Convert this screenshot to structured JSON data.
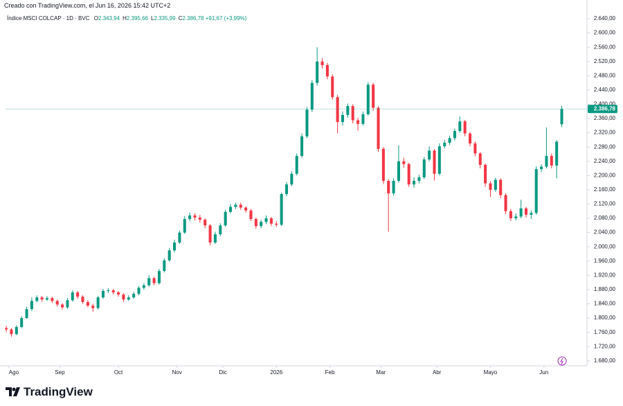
{
  "header": "Creado con TradingView.com, el Jun 16, 2026 15:42 UTC+2",
  "legend": {
    "name": "Índice MSCI COLCAP · 1D · BVC",
    "items": [
      [
        "O",
        "2.343,94"
      ],
      [
        "H",
        "2.395,66"
      ],
      [
        "L",
        "2.335,99"
      ],
      [
        "C",
        "2.386,78"
      ]
    ],
    "change": "+91,67 (+3,99%)"
  },
  "logo": "TradingView",
  "chart_data": {
    "type": "candlestick",
    "up_color": "#089981",
    "down_color": "#f23645",
    "grid": false,
    "ylim": [
      1666,
      2677
    ],
    "yticks": [
      {
        "value": 1680,
        "label": "1.680,00"
      },
      {
        "value": 1720,
        "label": "1.720,00"
      },
      {
        "value": 1760,
        "label": "1.760,00"
      },
      {
        "value": 1800,
        "label": "1.800,00"
      },
      {
        "value": 1840,
        "label": "1.840,00"
      },
      {
        "value": 1880,
        "label": "1.880,00"
      },
      {
        "value": 1920,
        "label": "1.920,00"
      },
      {
        "value": 1960,
        "label": "1.960,00"
      },
      {
        "value": 2000,
        "label": "2.000,00"
      },
      {
        "value": 2040,
        "label": "2.040,00"
      },
      {
        "value": 2080,
        "label": "2.080,00"
      },
      {
        "value": 2120,
        "label": "2.120,00"
      },
      {
        "value": 2160,
        "label": "2.160,00"
      },
      {
        "value": 2200,
        "label": "2.200,00"
      },
      {
        "value": 2240,
        "label": "2.240,00"
      },
      {
        "value": 2280,
        "label": "2.280,00"
      },
      {
        "value": 2320,
        "label": "2.320,00"
      },
      {
        "value": 2360,
        "label": "2.360,00"
      },
      {
        "value": 2400,
        "label": "2.400,00"
      },
      {
        "value": 2440,
        "label": "2.440,00"
      },
      {
        "value": 2480,
        "label": "2.480,00"
      },
      {
        "value": 2520,
        "label": "2.520,00"
      },
      {
        "value": 2560,
        "label": "2.560,00"
      },
      {
        "value": 2600,
        "label": "2.600,00"
      },
      {
        "value": 2640,
        "label": "2.640,00"
      }
    ],
    "xlim": [
      -0.15,
      109.2
    ],
    "xticks": [
      {
        "value": 0.5,
        "label": "Ago"
      },
      {
        "value": 10.5,
        "label": "Sep"
      },
      {
        "value": 22,
        "label": "Oct"
      },
      {
        "value": 33.5,
        "label": "Nov"
      },
      {
        "value": 42.5,
        "label": "Dic"
      },
      {
        "value": 53,
        "label": "2026"
      },
      {
        "value": 63.5,
        "label": "Feb"
      },
      {
        "value": 73.5,
        "label": "Mar"
      },
      {
        "value": 84.5,
        "label": "Abr"
      },
      {
        "value": 95,
        "label": "Mayo"
      },
      {
        "value": 105.5,
        "label": "Jun"
      }
    ],
    "last_price": {
      "value": 2386.78,
      "label": "2.386,78"
    },
    "ohlc": [
      [
        1772,
        1778,
        1760,
        1768
      ],
      [
        1768,
        1772,
        1748,
        1755
      ],
      [
        1755,
        1780,
        1752,
        1775
      ],
      [
        1775,
        1805,
        1772,
        1800
      ],
      [
        1800,
        1832,
        1798,
        1825
      ],
      [
        1825,
        1858,
        1820,
        1848
      ],
      [
        1848,
        1864,
        1844,
        1858
      ],
      [
        1858,
        1862,
        1846,
        1852
      ],
      [
        1852,
        1862,
        1848,
        1856
      ],
      [
        1856,
        1860,
        1842,
        1848
      ],
      [
        1848,
        1852,
        1832,
        1838
      ],
      [
        1838,
        1842,
        1824,
        1830
      ],
      [
        1830,
        1856,
        1826,
        1850
      ],
      [
        1850,
        1878,
        1846,
        1872
      ],
      [
        1872,
        1876,
        1854,
        1860
      ],
      [
        1860,
        1864,
        1840,
        1845
      ],
      [
        1845,
        1850,
        1830,
        1835
      ],
      [
        1835,
        1840,
        1818,
        1828
      ],
      [
        1828,
        1862,
        1824,
        1858
      ],
      [
        1858,
        1882,
        1854,
        1876
      ],
      [
        1876,
        1884,
        1870,
        1878
      ],
      [
        1878,
        1882,
        1866,
        1872
      ],
      [
        1872,
        1876,
        1860,
        1866
      ],
      [
        1866,
        1870,
        1846,
        1852
      ],
      [
        1852,
        1864,
        1848,
        1858
      ],
      [
        1858,
        1874,
        1854,
        1868
      ],
      [
        1868,
        1890,
        1864,
        1885
      ],
      [
        1885,
        1898,
        1880,
        1892
      ],
      [
        1892,
        1920,
        1888,
        1912
      ],
      [
        1912,
        1916,
        1892,
        1898
      ],
      [
        1898,
        1938,
        1894,
        1932
      ],
      [
        1932,
        1968,
        1928,
        1962
      ],
      [
        1962,
        1996,
        1958,
        1990
      ],
      [
        1990,
        2020,
        1984,
        2012
      ],
      [
        2012,
        2046,
        2008,
        2040
      ],
      [
        2040,
        2086,
        2036,
        2078
      ],
      [
        2078,
        2096,
        2072,
        2088
      ],
      [
        2088,
        2094,
        2074,
        2082
      ],
      [
        2082,
        2090,
        2068,
        2076
      ],
      [
        2076,
        2080,
        2052,
        2060
      ],
      [
        2060,
        2064,
        2004,
        2012
      ],
      [
        2012,
        2042,
        2008,
        2035
      ],
      [
        2035,
        2066,
        2030,
        2060
      ],
      [
        2060,
        2104,
        2056,
        2098
      ],
      [
        2098,
        2120,
        2094,
        2112
      ],
      [
        2112,
        2124,
        2106,
        2118
      ],
      [
        2118,
        2124,
        2104,
        2110
      ],
      [
        2110,
        2114,
        2096,
        2102
      ],
      [
        2102,
        2106,
        2072,
        2078
      ],
      [
        2078,
        2082,
        2050,
        2058
      ],
      [
        2058,
        2076,
        2052,
        2070
      ],
      [
        2070,
        2088,
        2064,
        2080
      ],
      [
        2080,
        2084,
        2058,
        2065
      ],
      [
        2065,
        2072,
        2056,
        2062
      ],
      [
        2062,
        2152,
        2058,
        2148
      ],
      [
        2148,
        2182,
        2142,
        2175
      ],
      [
        2175,
        2212,
        2170,
        2205
      ],
      [
        2205,
        2262,
        2200,
        2255
      ],
      [
        2255,
        2318,
        2250,
        2310
      ],
      [
        2310,
        2392,
        2305,
        2385
      ],
      [
        2385,
        2468,
        2378,
        2460
      ],
      [
        2460,
        2560,
        2452,
        2520
      ],
      [
        2520,
        2530,
        2500,
        2510
      ],
      [
        2510,
        2516,
        2470,
        2478
      ],
      [
        2478,
        2484,
        2412,
        2420
      ],
      [
        2420,
        2426,
        2318,
        2350
      ],
      [
        2350,
        2380,
        2340,
        2370
      ],
      [
        2370,
        2402,
        2362,
        2395
      ],
      [
        2395,
        2400,
        2346,
        2355
      ],
      [
        2355,
        2362,
        2326,
        2345
      ],
      [
        2345,
        2380,
        2340,
        2372
      ],
      [
        2372,
        2462,
        2368,
        2455
      ],
      [
        2455,
        2460,
        2382,
        2390
      ],
      [
        2390,
        2394,
        2266,
        2275
      ],
      [
        2275,
        2280,
        2176,
        2185
      ],
      [
        2185,
        2190,
        2042,
        2150
      ],
      [
        2150,
        2192,
        2144,
        2185
      ],
      [
        2185,
        2285,
        2180,
        2240
      ],
      [
        2240,
        2250,
        2222,
        2232
      ],
      [
        2232,
        2236,
        2168,
        2175
      ],
      [
        2175,
        2195,
        2166,
        2185
      ],
      [
        2185,
        2202,
        2178,
        2195
      ],
      [
        2195,
        2252,
        2190,
        2245
      ],
      [
        2245,
        2282,
        2240,
        2270
      ],
      [
        2270,
        2274,
        2186,
        2205
      ],
      [
        2205,
        2290,
        2200,
        2282
      ],
      [
        2282,
        2300,
        2276,
        2292
      ],
      [
        2292,
        2312,
        2286,
        2305
      ],
      [
        2305,
        2332,
        2298,
        2325
      ],
      [
        2325,
        2366,
        2320,
        2352
      ],
      [
        2352,
        2356,
        2310,
        2318
      ],
      [
        2318,
        2322,
        2282,
        2290
      ],
      [
        2290,
        2296,
        2254,
        2262
      ],
      [
        2262,
        2266,
        2220,
        2230
      ],
      [
        2230,
        2234,
        2168,
        2178
      ],
      [
        2178,
        2184,
        2140,
        2160
      ],
      [
        2160,
        2194,
        2154,
        2188
      ],
      [
        2188,
        2192,
        2136,
        2145
      ],
      [
        2145,
        2150,
        2092,
        2100
      ],
      [
        2100,
        2106,
        2072,
        2080
      ],
      [
        2080,
        2094,
        2074,
        2085
      ],
      [
        2085,
        2132,
        2080,
        2108
      ],
      [
        2108,
        2112,
        2082,
        2090
      ],
      [
        2090,
        2102,
        2078,
        2095
      ],
      [
        2095,
        2226,
        2090,
        2218
      ],
      [
        2218,
        2232,
        2210,
        2225
      ],
      [
        2225,
        2335,
        2220,
        2255
      ],
      [
        2255,
        2262,
        2220,
        2228
      ],
      [
        2228,
        2300,
        2192,
        2295.11
      ],
      [
        2343.94,
        2395.66,
        2335.99,
        2386.78
      ]
    ]
  }
}
